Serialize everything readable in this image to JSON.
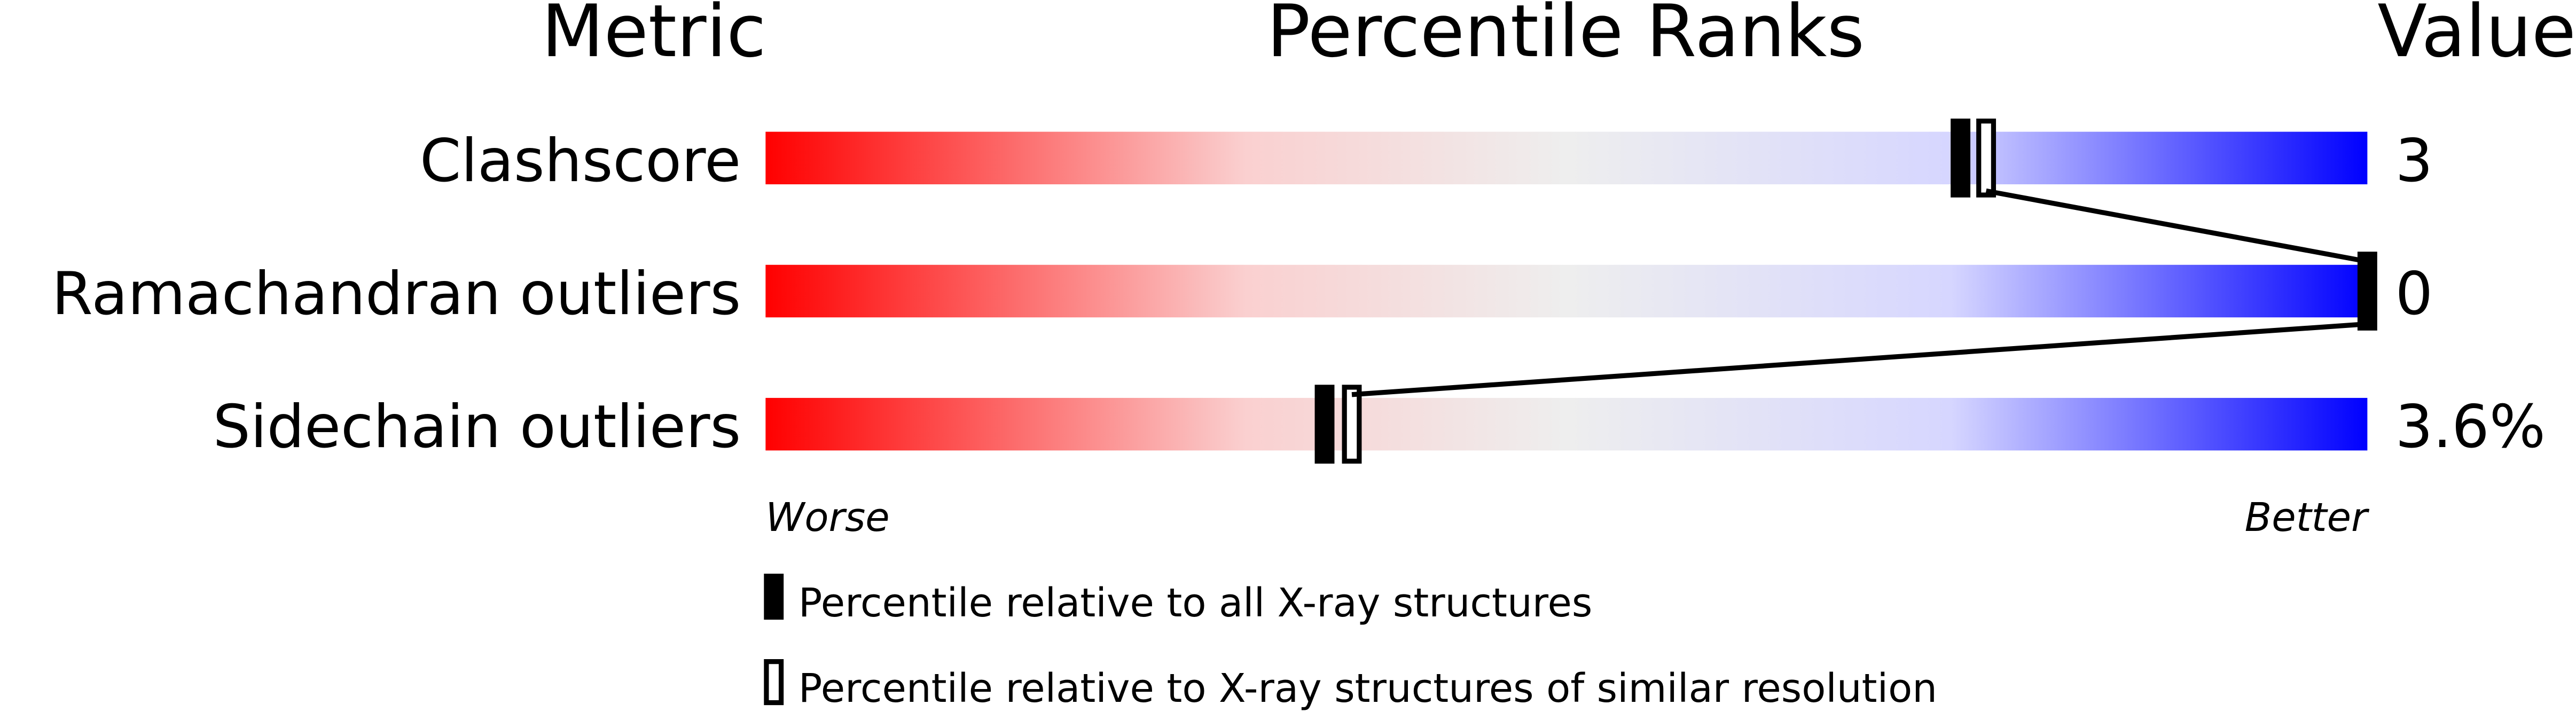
{
  "chart_data": {
    "type": "percentile-slider",
    "headers": {
      "metric": "Metric",
      "ranks": "Percentile Ranks",
      "value": "Value"
    },
    "xlim": [
      0,
      100
    ],
    "metrics": [
      {
        "label": "Clashscore",
        "value": "3",
        "percentile_all": 74.6,
        "percentile_similar": 76.2
      },
      {
        "label": "Ramachandran outliers",
        "value": "0",
        "percentile_all": 100,
        "percentile_similar": null
      },
      {
        "label": "Sidechain outliers",
        "value": "3.6%",
        "percentile_all": 34.9,
        "percentile_similar": 36.6
      }
    ],
    "axis_labels": {
      "left": "Worse",
      "right": "Better"
    },
    "legend": [
      {
        "symbol": "filled",
        "label": "Percentile relative to all X-ray structures"
      },
      {
        "symbol": "hollow",
        "label": "Percentile relative to X-ray structures of similar resolution"
      }
    ],
    "colors": {
      "worse": "#ff0000",
      "middle": "#f0f0f0",
      "better": "#0000ff",
      "marker": "#000000"
    }
  }
}
